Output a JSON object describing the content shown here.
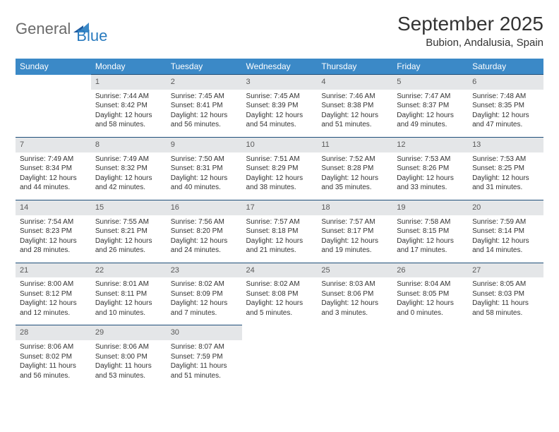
{
  "logo": {
    "part1": "General",
    "part2": "Blue"
  },
  "title": "September 2025",
  "location": "Bubion, Andalusia, Spain",
  "colors": {
    "header_bg": "#3b89c7",
    "daynum_bg": "#e4e6e8",
    "row_border": "#1e4e79",
    "logo_gray": "#6a6a6a",
    "logo_blue": "#2a7bbf"
  },
  "weekdays": [
    "Sunday",
    "Monday",
    "Tuesday",
    "Wednesday",
    "Thursday",
    "Friday",
    "Saturday"
  ],
  "weeks": [
    [
      null,
      {
        "n": "1",
        "sunrise": "Sunrise: 7:44 AM",
        "sunset": "Sunset: 8:42 PM",
        "daylight": "Daylight: 12 hours and 58 minutes."
      },
      {
        "n": "2",
        "sunrise": "Sunrise: 7:45 AM",
        "sunset": "Sunset: 8:41 PM",
        "daylight": "Daylight: 12 hours and 56 minutes."
      },
      {
        "n": "3",
        "sunrise": "Sunrise: 7:45 AM",
        "sunset": "Sunset: 8:39 PM",
        "daylight": "Daylight: 12 hours and 54 minutes."
      },
      {
        "n": "4",
        "sunrise": "Sunrise: 7:46 AM",
        "sunset": "Sunset: 8:38 PM",
        "daylight": "Daylight: 12 hours and 51 minutes."
      },
      {
        "n": "5",
        "sunrise": "Sunrise: 7:47 AM",
        "sunset": "Sunset: 8:37 PM",
        "daylight": "Daylight: 12 hours and 49 minutes."
      },
      {
        "n": "6",
        "sunrise": "Sunrise: 7:48 AM",
        "sunset": "Sunset: 8:35 PM",
        "daylight": "Daylight: 12 hours and 47 minutes."
      }
    ],
    [
      {
        "n": "7",
        "sunrise": "Sunrise: 7:49 AM",
        "sunset": "Sunset: 8:34 PM",
        "daylight": "Daylight: 12 hours and 44 minutes."
      },
      {
        "n": "8",
        "sunrise": "Sunrise: 7:49 AM",
        "sunset": "Sunset: 8:32 PM",
        "daylight": "Daylight: 12 hours and 42 minutes."
      },
      {
        "n": "9",
        "sunrise": "Sunrise: 7:50 AM",
        "sunset": "Sunset: 8:31 PM",
        "daylight": "Daylight: 12 hours and 40 minutes."
      },
      {
        "n": "10",
        "sunrise": "Sunrise: 7:51 AM",
        "sunset": "Sunset: 8:29 PM",
        "daylight": "Daylight: 12 hours and 38 minutes."
      },
      {
        "n": "11",
        "sunrise": "Sunrise: 7:52 AM",
        "sunset": "Sunset: 8:28 PM",
        "daylight": "Daylight: 12 hours and 35 minutes."
      },
      {
        "n": "12",
        "sunrise": "Sunrise: 7:53 AM",
        "sunset": "Sunset: 8:26 PM",
        "daylight": "Daylight: 12 hours and 33 minutes."
      },
      {
        "n": "13",
        "sunrise": "Sunrise: 7:53 AM",
        "sunset": "Sunset: 8:25 PM",
        "daylight": "Daylight: 12 hours and 31 minutes."
      }
    ],
    [
      {
        "n": "14",
        "sunrise": "Sunrise: 7:54 AM",
        "sunset": "Sunset: 8:23 PM",
        "daylight": "Daylight: 12 hours and 28 minutes."
      },
      {
        "n": "15",
        "sunrise": "Sunrise: 7:55 AM",
        "sunset": "Sunset: 8:21 PM",
        "daylight": "Daylight: 12 hours and 26 minutes."
      },
      {
        "n": "16",
        "sunrise": "Sunrise: 7:56 AM",
        "sunset": "Sunset: 8:20 PM",
        "daylight": "Daylight: 12 hours and 24 minutes."
      },
      {
        "n": "17",
        "sunrise": "Sunrise: 7:57 AM",
        "sunset": "Sunset: 8:18 PM",
        "daylight": "Daylight: 12 hours and 21 minutes."
      },
      {
        "n": "18",
        "sunrise": "Sunrise: 7:57 AM",
        "sunset": "Sunset: 8:17 PM",
        "daylight": "Daylight: 12 hours and 19 minutes."
      },
      {
        "n": "19",
        "sunrise": "Sunrise: 7:58 AM",
        "sunset": "Sunset: 8:15 PM",
        "daylight": "Daylight: 12 hours and 17 minutes."
      },
      {
        "n": "20",
        "sunrise": "Sunrise: 7:59 AM",
        "sunset": "Sunset: 8:14 PM",
        "daylight": "Daylight: 12 hours and 14 minutes."
      }
    ],
    [
      {
        "n": "21",
        "sunrise": "Sunrise: 8:00 AM",
        "sunset": "Sunset: 8:12 PM",
        "daylight": "Daylight: 12 hours and 12 minutes."
      },
      {
        "n": "22",
        "sunrise": "Sunrise: 8:01 AM",
        "sunset": "Sunset: 8:11 PM",
        "daylight": "Daylight: 12 hours and 10 minutes."
      },
      {
        "n": "23",
        "sunrise": "Sunrise: 8:02 AM",
        "sunset": "Sunset: 8:09 PM",
        "daylight": "Daylight: 12 hours and 7 minutes."
      },
      {
        "n": "24",
        "sunrise": "Sunrise: 8:02 AM",
        "sunset": "Sunset: 8:08 PM",
        "daylight": "Daylight: 12 hours and 5 minutes."
      },
      {
        "n": "25",
        "sunrise": "Sunrise: 8:03 AM",
        "sunset": "Sunset: 8:06 PM",
        "daylight": "Daylight: 12 hours and 3 minutes."
      },
      {
        "n": "26",
        "sunrise": "Sunrise: 8:04 AM",
        "sunset": "Sunset: 8:05 PM",
        "daylight": "Daylight: 12 hours and 0 minutes."
      },
      {
        "n": "27",
        "sunrise": "Sunrise: 8:05 AM",
        "sunset": "Sunset: 8:03 PM",
        "daylight": "Daylight: 11 hours and 58 minutes."
      }
    ],
    [
      {
        "n": "28",
        "sunrise": "Sunrise: 8:06 AM",
        "sunset": "Sunset: 8:02 PM",
        "daylight": "Daylight: 11 hours and 56 minutes."
      },
      {
        "n": "29",
        "sunrise": "Sunrise: 8:06 AM",
        "sunset": "Sunset: 8:00 PM",
        "daylight": "Daylight: 11 hours and 53 minutes."
      },
      {
        "n": "30",
        "sunrise": "Sunrise: 8:07 AM",
        "sunset": "Sunset: 7:59 PM",
        "daylight": "Daylight: 11 hours and 51 minutes."
      },
      null,
      null,
      null,
      null
    ]
  ]
}
